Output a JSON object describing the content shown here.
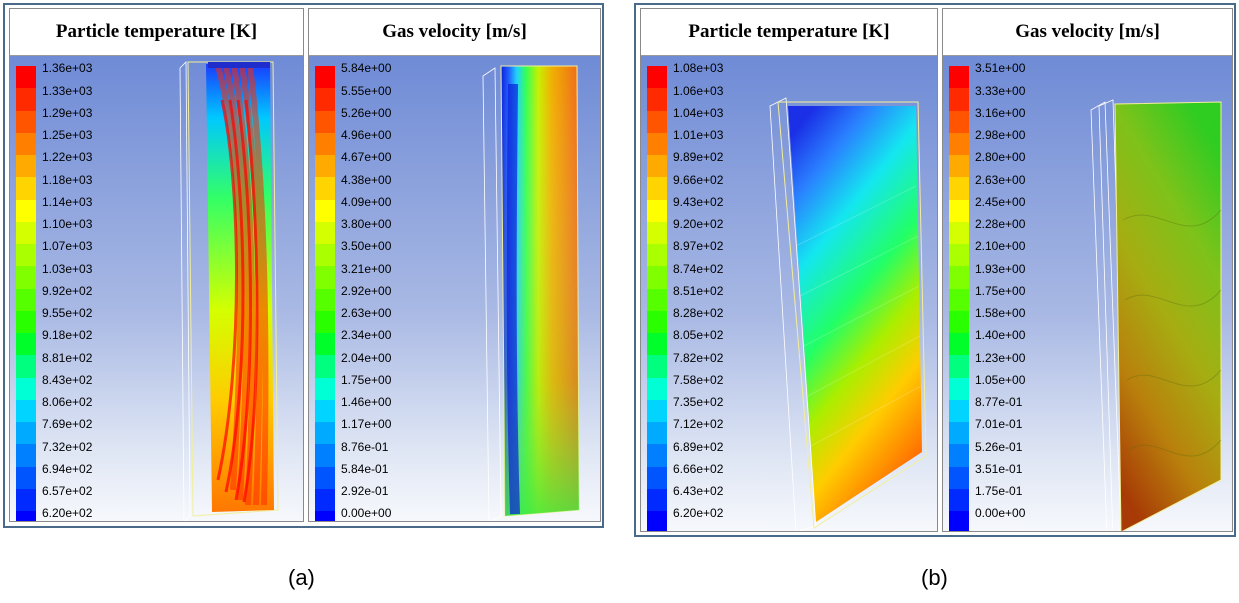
{
  "figures": [
    {
      "id": "a",
      "caption": "(a)",
      "panels": [
        {
          "title": "Particle temperature [K]",
          "legend": [
            "1.36e+03",
            "1.33e+03",
            "1.29e+03",
            "1.25e+03",
            "1.22e+03",
            "1.18e+03",
            "1.14e+03",
            "1.10e+03",
            "1.07e+03",
            "1.03e+03",
            "9.92e+02",
            "9.55e+02",
            "9.18e+02",
            "8.81e+02",
            "8.43e+02",
            "8.06e+02",
            "7.69e+02",
            "7.32e+02",
            "6.94e+02",
            "6.57e+02",
            "6.20e+02"
          ]
        },
        {
          "title": "Gas velocity [m/s]",
          "legend": [
            "5.84e+00",
            "5.55e+00",
            "5.26e+00",
            "4.96e+00",
            "4.67e+00",
            "4.38e+00",
            "4.09e+00",
            "3.80e+00",
            "3.50e+00",
            "3.21e+00",
            "2.92e+00",
            "2.63e+00",
            "2.34e+00",
            "2.04e+00",
            "1.75e+00",
            "1.46e+00",
            "1.17e+00",
            "8.76e-01",
            "5.84e-01",
            "2.92e-01",
            "0.00e+00"
          ]
        }
      ]
    },
    {
      "id": "b",
      "caption": "(b)",
      "panels": [
        {
          "title": "Particle temperature [K]",
          "legend": [
            "1.08e+03",
            "1.06e+03",
            "1.04e+03",
            "1.01e+03",
            "9.89e+02",
            "9.66e+02",
            "9.43e+02",
            "9.20e+02",
            "8.97e+02",
            "8.74e+02",
            "8.51e+02",
            "8.28e+02",
            "8.05e+02",
            "7.82e+02",
            "7.58e+02",
            "7.35e+02",
            "7.12e+02",
            "6.89e+02",
            "6.66e+02",
            "6.43e+02",
            "6.20e+02"
          ]
        },
        {
          "title": "Gas velocity [m/s]",
          "legend": [
            "3.51e+00",
            "3.33e+00",
            "3.16e+00",
            "2.98e+00",
            "2.80e+00",
            "2.63e+00",
            "2.45e+00",
            "2.28e+00",
            "2.10e+00",
            "1.93e+00",
            "1.75e+00",
            "1.58e+00",
            "1.40e+00",
            "1.23e+00",
            "1.05e+00",
            "8.77e-01",
            "7.01e-01",
            "5.26e-01",
            "3.51e-01",
            "1.75e-01",
            "0.00e+00"
          ]
        }
      ]
    }
  ],
  "colormap": [
    "#ff0000",
    "#ff2a00",
    "#ff5500",
    "#ff7f00",
    "#ffaa00",
    "#ffd400",
    "#ffff00",
    "#d4ff00",
    "#aaff00",
    "#7fff00",
    "#55ff00",
    "#2aff00",
    "#00ff2a",
    "#00ff7f",
    "#00ffd4",
    "#00d4ff",
    "#00aaff",
    "#0080ff",
    "#0055ff",
    "#002aff",
    "#0000ff"
  ]
}
